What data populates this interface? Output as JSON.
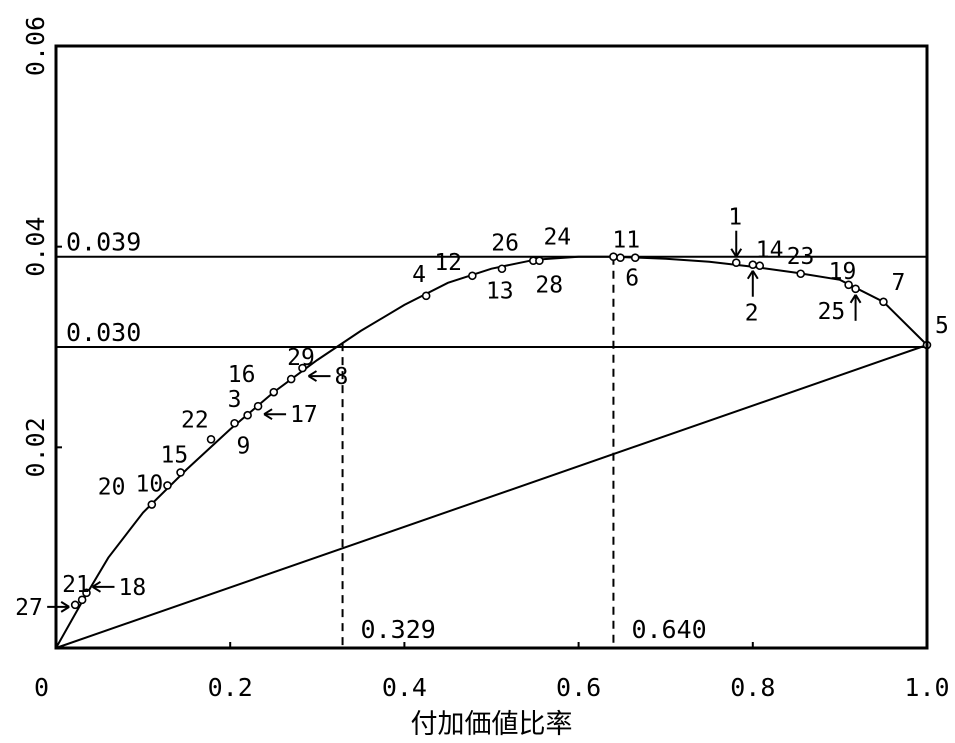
{
  "chart_data": {
    "type": "line",
    "title": "",
    "xlabel": "付加価値比率",
    "ylabel": "",
    "xlim": [
      0,
      1.0
    ],
    "ylim": [
      0,
      0.06
    ],
    "xticks": [
      "0",
      "0.2",
      "0.4",
      "0.6",
      "0.8",
      "1.0"
    ],
    "xtick_values": [
      0,
      0.2,
      0.4,
      0.6,
      0.8,
      1.0
    ],
    "yticks": [
      "0.02",
      "0.04",
      "0.06"
    ],
    "ytick_values": [
      0.02,
      0.04,
      0.06
    ],
    "grid": false,
    "curve": {
      "x": [
        0,
        0.03,
        0.06,
        0.1,
        0.15,
        0.2,
        0.25,
        0.3,
        0.35,
        0.4,
        0.45,
        0.5,
        0.55,
        0.6,
        0.64,
        0.7,
        0.75,
        0.8,
        0.85,
        0.9,
        0.95,
        1.0
      ],
      "y": [
        0,
        0.0046,
        0.009,
        0.0135,
        0.0178,
        0.0218,
        0.0255,
        0.0287,
        0.0316,
        0.0342,
        0.0364,
        0.0378,
        0.0387,
        0.039,
        0.039,
        0.0388,
        0.0385,
        0.038,
        0.0374,
        0.0367,
        0.0345,
        0.0302
      ]
    },
    "diagonal": {
      "x": [
        0,
        1.0
      ],
      "y": [
        0,
        0.0302
      ]
    },
    "hlines": [
      {
        "y": 0.039,
        "label": "0.039"
      },
      {
        "y": 0.03,
        "label": "0.030"
      }
    ],
    "vlines": [
      {
        "x": 0.329,
        "label": "0.329"
      },
      {
        "x": 0.64,
        "label": "0.640"
      }
    ],
    "points": [
      {
        "label": "1",
        "x": 0.781,
        "y": 0.0384
      },
      {
        "label": "2",
        "x": 0.8,
        "y": 0.0382
      },
      {
        "label": "3",
        "x": 0.22,
        "y": 0.0232
      },
      {
        "label": "4",
        "x": 0.425,
        "y": 0.0351
      },
      {
        "label": "5",
        "x": 1.0,
        "y": 0.0302
      },
      {
        "label": "6",
        "x": 0.665,
        "y": 0.0389
      },
      {
        "label": "7",
        "x": 0.95,
        "y": 0.0345
      },
      {
        "label": "8",
        "x": 0.283,
        "y": 0.0279
      },
      {
        "label": "9",
        "x": 0.205,
        "y": 0.0224
      },
      {
        "label": "10",
        "x": 0.128,
        "y": 0.0162
      },
      {
        "label": "11",
        "x": 0.648,
        "y": 0.0389
      },
      {
        "label": "12",
        "x": 0.478,
        "y": 0.0371
      },
      {
        "label": "13",
        "x": 0.512,
        "y": 0.0378
      },
      {
        "label": "14",
        "x": 0.808,
        "y": 0.0381
      },
      {
        "label": "15",
        "x": 0.143,
        "y": 0.0175
      },
      {
        "label": "16",
        "x": 0.25,
        "y": 0.0255
      },
      {
        "label": "17",
        "x": 0.232,
        "y": 0.0241
      },
      {
        "label": "18",
        "x": 0.035,
        "y": 0.0055
      },
      {
        "label": "19",
        "x": 0.91,
        "y": 0.0362
      },
      {
        "label": "20",
        "x": 0.11,
        "y": 0.0143
      },
      {
        "label": "21",
        "x": 0.03,
        "y": 0.0048
      },
      {
        "label": "22",
        "x": 0.178,
        "y": 0.0208
      },
      {
        "label": "23",
        "x": 0.855,
        "y": 0.0373
      },
      {
        "label": "24",
        "x": 0.64,
        "y": 0.039
      },
      {
        "label": "25",
        "x": 0.918,
        "y": 0.0358
      },
      {
        "label": "26",
        "x": 0.548,
        "y": 0.0386
      },
      {
        "label": "27",
        "x": 0.022,
        "y": 0.0043
      },
      {
        "label": "28",
        "x": 0.555,
        "y": 0.0386
      },
      {
        "label": "29",
        "x": 0.27,
        "y": 0.0268
      }
    ]
  }
}
